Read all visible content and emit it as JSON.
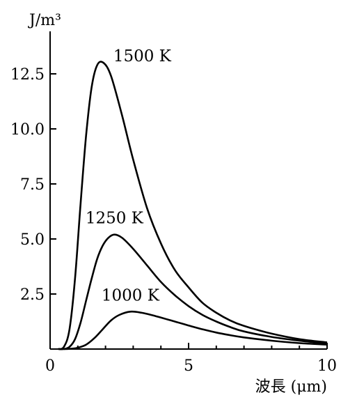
{
  "chart_data": {
    "type": "line",
    "title": "",
    "xlabel": "波長 (μm)",
    "ylabel": "J/m³",
    "xlim": [
      0,
      10
    ],
    "ylim": [
      0,
      14.5
    ],
    "x_ticks": [
      0,
      5,
      10
    ],
    "x_tick_labels": [
      "0",
      "5",
      "10"
    ],
    "y_ticks": [
      2.5,
      5.0,
      7.5,
      10.0,
      12.5
    ],
    "y_tick_labels": [
      "2.5",
      "5.0",
      "7.5",
      "10.0",
      "12.5"
    ],
    "grid": false,
    "legend": "none",
    "series": [
      {
        "name": "1500 K",
        "peak": [
          1.93,
          13.0
        ],
        "x": [
          0.3,
          0.5,
          0.7,
          0.9,
          1.1,
          1.3,
          1.5,
          1.7,
          1.93,
          2.2,
          2.6,
          3.0,
          3.5,
          4.0,
          4.5,
          5.0,
          5.5,
          6.0,
          6.5,
          7.0,
          8.0,
          9.0,
          10.0
        ],
        "y": [
          0.0,
          0.1,
          0.9,
          3.2,
          6.6,
          9.7,
          11.9,
          12.9,
          13.0,
          12.4,
          10.6,
          8.6,
          6.4,
          4.8,
          3.6,
          2.8,
          2.1,
          1.65,
          1.3,
          1.05,
          0.7,
          0.45,
          0.3
        ]
      },
      {
        "name": "1250 K",
        "peak": [
          2.32,
          5.2
        ],
        "x": [
          0.3,
          0.5,
          0.7,
          0.9,
          1.1,
          1.3,
          1.5,
          1.7,
          1.9,
          2.1,
          2.32,
          2.6,
          3.0,
          3.5,
          4.0,
          4.5,
          5.0,
          5.5,
          6.0,
          6.5,
          7.0,
          8.0,
          9.0,
          10.0
        ],
        "y": [
          0.0,
          0.0,
          0.1,
          0.45,
          1.2,
          2.2,
          3.2,
          4.1,
          4.7,
          5.05,
          5.2,
          5.05,
          4.55,
          3.8,
          3.05,
          2.45,
          1.95,
          1.55,
          1.25,
          1.0,
          0.8,
          0.55,
          0.38,
          0.25
        ]
      },
      {
        "name": "1000 K",
        "peak": [
          2.9,
          1.7
        ],
        "x": [
          0.5,
          0.8,
          1.0,
          1.3,
          1.6,
          1.9,
          2.2,
          2.5,
          2.9,
          3.3,
          3.8,
          4.5,
          5.0,
          5.5,
          6.0,
          6.5,
          7.0,
          8.0,
          9.0,
          10.0
        ],
        "y": [
          0.0,
          0.02,
          0.06,
          0.2,
          0.5,
          0.9,
          1.3,
          1.55,
          1.7,
          1.65,
          1.5,
          1.25,
          1.07,
          0.9,
          0.75,
          0.63,
          0.53,
          0.38,
          0.27,
          0.2
        ]
      }
    ]
  }
}
